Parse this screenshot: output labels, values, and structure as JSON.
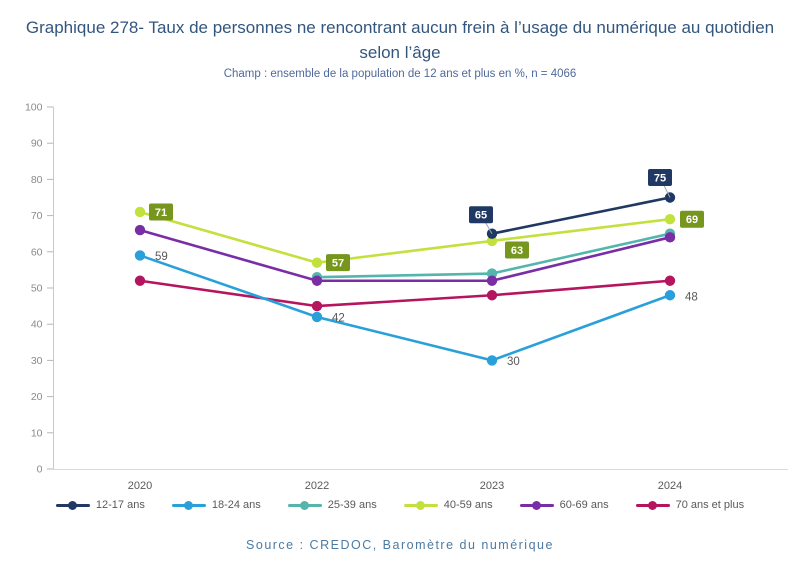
{
  "header": {
    "title_line1": "Graphique 278- Taux de personnes ne rencontrant aucun frein à l’usage du numérique au quotidien",
    "title_line2": "selon l’âge",
    "subtitle": "Champ : ensemble de la population de 12 ans et plus en %, n = 4066"
  },
  "footer": {
    "source": "Source : CREDOC, Baromètre du numérique"
  },
  "chart_data": {
    "type": "line",
    "title": "Graphique 278- Taux de personnes ne rencontrant aucun frein à l’usage du numérique au quotidien selon l’âge",
    "subtitle": "Champ : ensemble de la population de 12 ans et plus en %, n = 4066",
    "source": "Source : CREDOC, Baromètre du numérique",
    "categories": [
      "2020",
      "2022",
      "2023",
      "2024"
    ],
    "ylim": [
      0,
      100
    ],
    "ytick_step": 10,
    "grid": false,
    "legend_position": "bottom",
    "series": [
      {
        "name": "12-17 ans",
        "color": "#1f3864",
        "values": [
          null,
          null,
          65,
          75
        ],
        "label_style": "box-callout",
        "label_bg": "#1f3864",
        "label_offsets": [
          null,
          null,
          [
            -11,
            -19
          ],
          [
            -10,
            -20
          ]
        ]
      },
      {
        "name": "18-24 ans",
        "color": "#29a0da",
        "values": [
          59,
          42,
          30,
          48
        ],
        "label_style": "plain",
        "label_color": "#595959",
        "label_offsets": [
          [
            15,
            1
          ],
          [
            15,
            1
          ],
          [
            15,
            1
          ],
          [
            15,
            2
          ]
        ]
      },
      {
        "name": "25-39 ans",
        "color": "#54b5ac",
        "values": [
          null,
          53,
          54,
          65
        ],
        "label_style": "none"
      },
      {
        "name": "40-59 ans",
        "color": "#c3e13e",
        "values": [
          71,
          57,
          63,
          69
        ],
        "label_style": "box",
        "label_bg": "#76961d",
        "label_offsets": [
          [
            9,
            0
          ],
          [
            9,
            0
          ],
          [
            13,
            9
          ],
          [
            10,
            0
          ]
        ]
      },
      {
        "name": "60-69 ans",
        "color": "#7a2ea6",
        "values": [
          66,
          52,
          52,
          64
        ],
        "label_style": "none"
      },
      {
        "name": "70 ans et plus",
        "color": "#b5155f",
        "values": [
          52,
          45,
          48,
          52
        ],
        "label_style": "none"
      }
    ],
    "draw_order": [
      2,
      4,
      5,
      1,
      3,
      0
    ]
  }
}
